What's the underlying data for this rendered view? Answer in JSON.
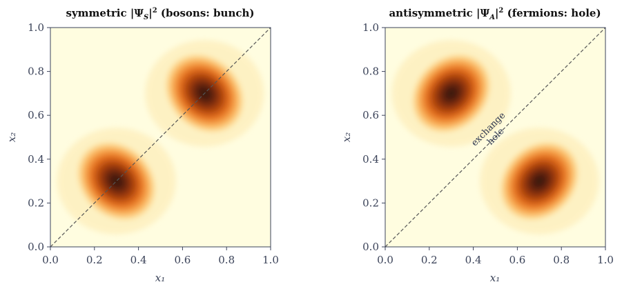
{
  "chart_data": [
    {
      "type": "heatmap",
      "title": "symmetric |Ψ_S|² (bosons: bunch)",
      "title_parts": {
        "pre": "symmetric |Ψ",
        "sub": "S",
        "post": "|",
        "sup": "2",
        "tail": " (bosons: bunch)"
      },
      "xlabel": "x₁",
      "ylabel": "x₂",
      "xlim": [
        0,
        1
      ],
      "ylim": [
        0,
        1
      ],
      "xticks": [
        "0.0",
        "0.2",
        "0.4",
        "0.6",
        "0.8",
        "1.0"
      ],
      "yticks": [
        "0.0",
        "0.2",
        "0.4",
        "0.6",
        "0.8",
        "1.0"
      ],
      "diagonal": true,
      "maxima": [
        {
          "x": 0.3,
          "y": 0.3
        },
        {
          "x": 0.7,
          "y": 0.7
        }
      ],
      "node_zero_line": null,
      "colormap": [
        "#fffde0",
        "#fde6a3",
        "#fbb45a",
        "#f07c22",
        "#c2480a",
        "#7a2a08",
        "#3a1a06"
      ],
      "grid": false
    },
    {
      "type": "heatmap",
      "title": "antisymmetric |Ψ_A|² (fermions: hole)",
      "title_parts": {
        "pre": "antisymmetric |Ψ",
        "sub": "A",
        "post": "|",
        "sup": "2",
        "tail": " (fermions: hole)"
      },
      "xlabel": "x₁",
      "ylabel": "x₂",
      "xlim": [
        0,
        1
      ],
      "ylim": [
        0,
        1
      ],
      "xticks": [
        "0.0",
        "0.2",
        "0.4",
        "0.6",
        "0.8",
        "1.0"
      ],
      "yticks": [
        "0.0",
        "0.2",
        "0.4",
        "0.6",
        "0.8",
        "1.0"
      ],
      "diagonal": true,
      "maxima": [
        {
          "x": 0.3,
          "y": 0.7
        },
        {
          "x": 0.7,
          "y": 0.3
        }
      ],
      "annotation": [
        "exchange",
        "hole"
      ],
      "colormap": [
        "#fffde0",
        "#fde6a3",
        "#fbb45a",
        "#f07c22",
        "#c2480a",
        "#7a2a08",
        "#3a1a06"
      ],
      "grid": false
    }
  ]
}
